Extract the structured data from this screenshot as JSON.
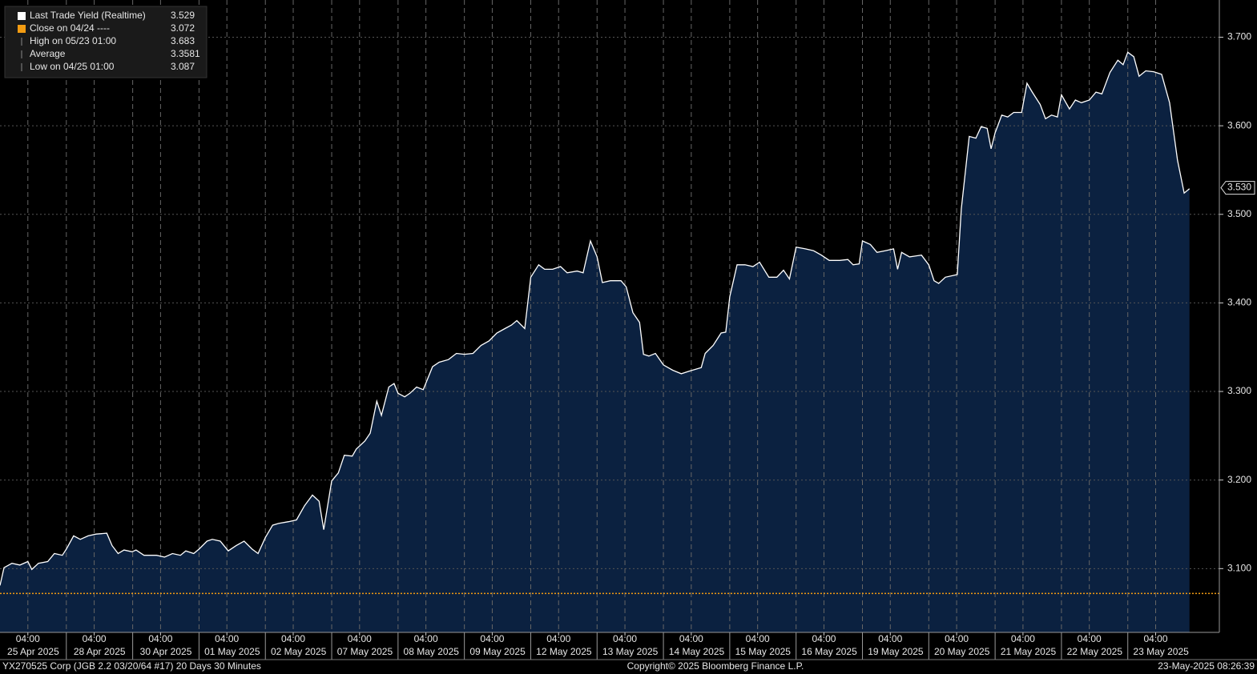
{
  "chart_data": {
    "type": "area",
    "legend": [
      {
        "name": "Last Trade Yield (Realtime)",
        "value": 3.529,
        "color": "#ffffff"
      },
      {
        "name": "Close on 04/24 ----",
        "value": 3.072,
        "color": "#f39c12"
      },
      {
        "name": "High on 05/23 01:00",
        "value": 3.683
      },
      {
        "name": "Average",
        "value": 3.3581
      },
      {
        "name": "Low on 04/25 01:00",
        "value": 3.087
      }
    ],
    "close_line": {
      "value": 3.072,
      "color": "#f39c12"
    },
    "last_value_label": {
      "value": 3.53,
      "label": "3.530"
    },
    "categories": [
      "25 Apr 2025",
      "28 Apr 2025",
      "30 Apr 2025",
      "01 May 2025",
      "02 May 2025",
      "07 May 2025",
      "08 May 2025",
      "09 May 2025",
      "12 May 2025",
      "13 May 2025",
      "14 May 2025",
      "15 May 2025",
      "16 May 2025",
      "19 May 2025",
      "20 May 2025",
      "21 May 2025",
      "22 May 2025",
      "23 May 2025"
    ],
    "xlim": [
      0,
      18.38
    ],
    "xticks": [
      {
        "value": 0.42,
        "label": "04:00"
      },
      {
        "value": 1.42,
        "label": "04:00"
      },
      {
        "value": 2.42,
        "label": "04:00"
      },
      {
        "value": 3.42,
        "label": "04:00"
      },
      {
        "value": 4.42,
        "label": "04:00"
      },
      {
        "value": 5.42,
        "label": "04:00"
      },
      {
        "value": 6.42,
        "label": "04:00"
      },
      {
        "value": 7.42,
        "label": "04:00"
      },
      {
        "value": 8.42,
        "label": "04:00"
      },
      {
        "value": 9.42,
        "label": "04:00"
      },
      {
        "value": 10.42,
        "label": "04:00"
      },
      {
        "value": 11.42,
        "label": "04:00"
      },
      {
        "value": 12.42,
        "label": "04:00"
      },
      {
        "value": 13.42,
        "label": "04:00"
      },
      {
        "value": 14.42,
        "label": "04:00"
      },
      {
        "value": 15.42,
        "label": "04:00"
      },
      {
        "value": 16.42,
        "label": "04:00"
      },
      {
        "value": 17.42,
        "label": "04:00"
      }
    ],
    "ylim": [
      3.028,
      3.742
    ],
    "yticks": [
      {
        "value": 3.1,
        "label": "3.100"
      },
      {
        "value": 3.2,
        "label": "3.200"
      },
      {
        "value": 3.3,
        "label": "3.300"
      },
      {
        "value": 3.4,
        "label": "3.400"
      },
      {
        "value": 3.5,
        "label": "3.500"
      },
      {
        "value": 3.6,
        "label": "3.600"
      },
      {
        "value": 3.7,
        "label": "3.700"
      }
    ],
    "grid": true,
    "series": [
      {
        "name": "Last Trade Yield (Realtime)",
        "color": "#ffffff",
        "fill": "#0b2140",
        "x": [
          0,
          0.06,
          0.18,
          0.3,
          0.42,
          0.48,
          0.58,
          0.72,
          0.82,
          0.94,
          1.0,
          1.11,
          1.21,
          1.33,
          1.45,
          1.61,
          1.69,
          1.78,
          1.87,
          1.99,
          2.05,
          2.17,
          2.36,
          2.48,
          2.6,
          2.72,
          2.8,
          2.92,
          3.0,
          3.12,
          3.2,
          3.32,
          3.44,
          3.56,
          3.68,
          3.8,
          3.89,
          4.0,
          4.11,
          4.2,
          4.35,
          4.47,
          4.59,
          4.71,
          4.81,
          4.88,
          5.0,
          5.1,
          5.19,
          5.31,
          5.37,
          5.5,
          5.58,
          5.68,
          5.75,
          5.86,
          5.94,
          6.0,
          6.1,
          6.18,
          6.28,
          6.38,
          6.52,
          6.62,
          6.76,
          6.88,
          7.0,
          7.13,
          7.25,
          7.37,
          7.49,
          7.61,
          7.71,
          7.79,
          7.91,
          8.0,
          8.12,
          8.21,
          8.33,
          8.45,
          8.55,
          8.7,
          8.79,
          8.9,
          9.0,
          9.08,
          9.2,
          9.36,
          9.44,
          9.54,
          9.64,
          9.7,
          9.78,
          9.88,
          10.0,
          10.14,
          10.27,
          10.39,
          10.57,
          10.63,
          10.75,
          10.87,
          10.94,
          11.0,
          11.11,
          11.23,
          11.35,
          11.45,
          11.59,
          11.71,
          11.81,
          11.9,
          12.0,
          12.14,
          12.26,
          12.38,
          12.5,
          12.66,
          12.78,
          12.86,
          12.95,
          13.0,
          13.12,
          13.22,
          13.35,
          13.47,
          13.53,
          13.59,
          13.71,
          13.89,
          14.0,
          14.08,
          14.15,
          14.25,
          14.37,
          14.43,
          14.49,
          14.61,
          14.71,
          14.79,
          14.88,
          14.94,
          15.0,
          15.1,
          15.19,
          15.28,
          15.4,
          15.48,
          15.56,
          15.68,
          15.76,
          15.85,
          15.94,
          16.0,
          16.12,
          16.21,
          16.3,
          16.42,
          16.52,
          16.61,
          16.73,
          16.85,
          16.93,
          17.0,
          17.09,
          17.17,
          17.27,
          17.39,
          17.51,
          17.63,
          17.75,
          17.85,
          17.93
        ],
        "values": [
          3.081,
          3.101,
          3.106,
          3.104,
          3.108,
          3.099,
          3.106,
          3.108,
          3.117,
          3.115,
          3.122,
          3.137,
          3.133,
          3.137,
          3.139,
          3.14,
          3.126,
          3.117,
          3.121,
          3.119,
          3.121,
          3.115,
          3.115,
          3.113,
          3.117,
          3.115,
          3.12,
          3.117,
          3.122,
          3.131,
          3.133,
          3.131,
          3.12,
          3.126,
          3.131,
          3.122,
          3.117,
          3.135,
          3.149,
          3.151,
          3.153,
          3.155,
          3.171,
          3.183,
          3.176,
          3.144,
          3.199,
          3.208,
          3.228,
          3.227,
          3.235,
          3.244,
          3.253,
          3.289,
          3.273,
          3.305,
          3.309,
          3.298,
          3.294,
          3.298,
          3.305,
          3.302,
          3.328,
          3.333,
          3.336,
          3.343,
          3.342,
          3.343,
          3.352,
          3.357,
          3.366,
          3.371,
          3.375,
          3.38,
          3.371,
          3.429,
          3.443,
          3.438,
          3.438,
          3.441,
          3.434,
          3.436,
          3.434,
          3.47,
          3.452,
          3.423,
          3.425,
          3.425,
          3.418,
          3.389,
          3.378,
          3.342,
          3.34,
          3.343,
          3.33,
          3.324,
          3.32,
          3.323,
          3.327,
          3.343,
          3.352,
          3.366,
          3.367,
          3.407,
          3.443,
          3.443,
          3.441,
          3.446,
          3.429,
          3.429,
          3.437,
          3.427,
          3.463,
          3.461,
          3.459,
          3.454,
          3.448,
          3.448,
          3.449,
          3.443,
          3.444,
          3.47,
          3.466,
          3.457,
          3.459,
          3.461,
          3.438,
          3.457,
          3.452,
          3.454,
          3.443,
          3.425,
          3.422,
          3.429,
          3.431,
          3.432,
          3.506,
          3.588,
          3.586,
          3.599,
          3.597,
          3.574,
          3.592,
          3.612,
          3.61,
          3.615,
          3.615,
          3.648,
          3.638,
          3.624,
          3.608,
          3.612,
          3.61,
          3.635,
          3.619,
          3.629,
          3.626,
          3.629,
          3.638,
          3.636,
          3.66,
          3.674,
          3.669,
          3.683,
          3.678,
          3.656,
          3.662,
          3.661,
          3.658,
          3.626,
          3.561,
          3.524,
          3.529
        ]
      }
    ],
    "footer_left": "YX270525 Corp (JGB 2.2 03/20/64 #17) 20 Days 30 Minutes",
    "footer_center": "Copyright© 2025 Bloomberg Finance L.P.",
    "footer_right": "23-May-2025 08:26:39"
  }
}
